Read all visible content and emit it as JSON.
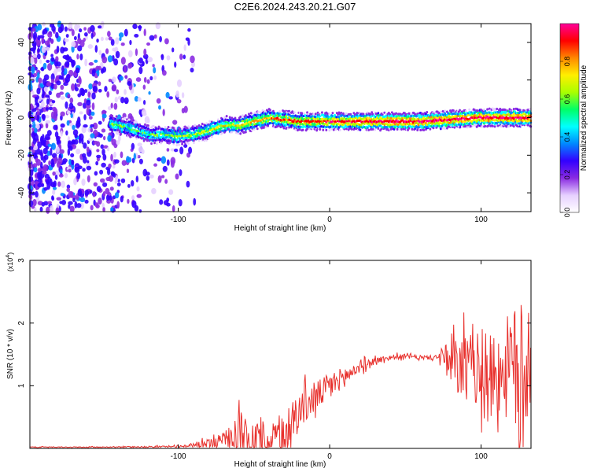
{
  "title": "C2E6.2024.243.20.21.G07",
  "chart_data": [
    {
      "type": "heatmap",
      "xlabel": "Height of straight line (km)",
      "ylabel": "Frequency (Hz)",
      "xlim": [
        -198,
        133
      ],
      "ylim": [
        -50,
        50
      ],
      "xticks": [
        -100,
        0,
        100
      ],
      "xtick_labels": [
        "-100",
        "0",
        "100"
      ],
      "yticks": [
        -40,
        -20,
        0,
        20,
        40
      ],
      "ytick_labels": [
        "-40",
        "-20",
        "0",
        "20",
        "40"
      ],
      "colorbar": {
        "label": "Normalized spectral amplitude",
        "range": [
          0,
          1
        ],
        "ticks": [
          0.0,
          0.2,
          0.4,
          0.6,
          0.8
        ],
        "tick_labels": [
          "0.0",
          "0.2",
          "0.4",
          "0.6",
          "0.8"
        ],
        "colors": [
          "#ffffff",
          "#e6d0ff",
          "#8a2be2",
          "#3300ff",
          "#0088ff",
          "#00ffff",
          "#00ff66",
          "#aaff00",
          "#ffee00",
          "#ff8800",
          "#ff0000",
          "#ff0099"
        ]
      },
      "ridge": {
        "x": [
          -145,
          -130,
          -120,
          -110,
          -100,
          -90,
          -80,
          -70,
          -60,
          -50,
          -40,
          -30,
          -20,
          0,
          20,
          40,
          60,
          80,
          100,
          120,
          133
        ],
        "frequency": [
          -3,
          -6,
          -9,
          -9,
          -10,
          -9,
          -7,
          -4,
          -4,
          -2,
          0,
          -1,
          -2,
          -2,
          -2,
          -2,
          -2,
          -1,
          0,
          0,
          0
        ]
      }
    },
    {
      "type": "line",
      "xlabel": "Height of straight line (km)",
      "ylabel": "SNR (10 * v/v)",
      "y_multiplier_label": "(x10",
      "y_multiplier_exp": "4",
      "y_multiplier_close": ")",
      "xlim": [
        -198,
        133
      ],
      "ylim": [
        0,
        3
      ],
      "xticks": [
        -100,
        0,
        100
      ],
      "xtick_labels": [
        "-100",
        "0",
        "100"
      ],
      "yticks": [
        1,
        2,
        3
      ],
      "ytick_labels": [
        "1",
        "2",
        "3"
      ],
      "color": "#e8302c",
      "envelope": {
        "x": [
          -198,
          -150,
          -100,
          -90,
          -75,
          -65,
          -60,
          -55,
          -50,
          -45,
          -40,
          -35,
          -30,
          -25,
          -20,
          -10,
          0,
          10,
          20,
          30,
          40,
          50,
          60,
          70,
          75,
          78,
          85,
          90,
          100,
          110,
          120,
          125,
          130,
          133
        ],
        "mean": [
          0.02,
          0.02,
          0.03,
          0.05,
          0.1,
          0.18,
          0.3,
          0.2,
          0.12,
          0.2,
          0.18,
          0.15,
          0.3,
          0.45,
          0.6,
          0.8,
          1.0,
          1.15,
          1.3,
          1.4,
          1.45,
          1.47,
          1.45,
          1.45,
          1.5,
          1.3,
          1.3,
          1.3,
          1.25,
          1.2,
          1.3,
          1.2,
          1.2,
          1.2
        ],
        "spread": [
          0.01,
          0.01,
          0.02,
          0.05,
          0.12,
          0.25,
          0.7,
          0.45,
          0.5,
          0.6,
          0.5,
          0.5,
          0.6,
          0.5,
          0.45,
          0.35,
          0.3,
          0.22,
          0.12,
          0.08,
          0.06,
          0.05,
          0.05,
          0.05,
          0.2,
          0.5,
          0.7,
          0.75,
          0.85,
          0.9,
          1.3,
          1.7,
          1.3,
          1.0
        ]
      }
    }
  ]
}
